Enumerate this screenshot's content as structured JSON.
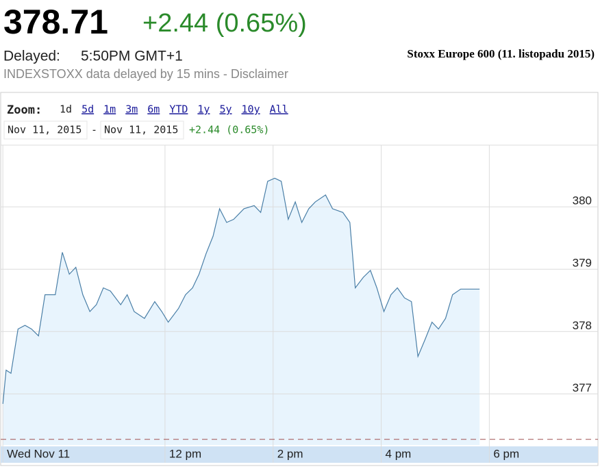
{
  "header": {
    "price": "378.71",
    "change": "+2.44 (0.65%)",
    "delayed_label": "Delayed:",
    "time": "5:50PM GMT+1",
    "chart_title": "Stoxx Europe 600 (11. listopadu 2015)",
    "disclaimer": "INDEXSTOXX data delayed by 15 mins - Disclaimer"
  },
  "controls": {
    "zoom_label": "Zoom:",
    "zoom_options": [
      "1d",
      "5d",
      "1m",
      "3m",
      "6m",
      "YTD",
      "1y",
      "5y",
      "10y",
      "All"
    ],
    "from": "Nov 11, 2015",
    "separator": "-",
    "to": "Nov 11, 2015",
    "range_change": "+2.44 (0.65%)"
  },
  "chart_data": {
    "type": "line",
    "x": [
      9.0,
      9.06,
      9.15,
      9.28,
      9.41,
      9.53,
      9.66,
      9.78,
      9.97,
      10.1,
      10.23,
      10.35,
      10.48,
      10.61,
      10.73,
      10.86,
      10.99,
      11.18,
      11.3,
      11.43,
      11.62,
      11.81,
      11.94,
      12.06,
      12.25,
      12.38,
      12.51,
      12.63,
      12.76,
      12.89,
      13.01,
      13.14,
      13.27,
      13.46,
      13.65,
      13.77,
      13.9,
      14.03,
      14.15,
      14.28,
      14.41,
      14.53,
      14.66,
      14.78,
      14.97,
      15.1,
      15.29,
      15.42,
      15.52,
      15.67,
      15.8,
      15.92,
      16.05,
      16.18,
      16.3,
      16.43,
      16.56,
      16.68,
      16.81,
      16.94,
      17.06,
      17.19,
      17.32,
      17.47,
      17.82
    ],
    "series": [
      {
        "color": "#4a7fa7",
        "fill": "#e8f4fd",
        "values": [
          376.84,
          377.38,
          377.33,
          378.04,
          378.1,
          378.04,
          377.93,
          378.59,
          378.59,
          379.27,
          378.92,
          379.03,
          378.59,
          378.32,
          378.43,
          378.7,
          378.65,
          378.43,
          378.59,
          378.32,
          378.21,
          378.48,
          378.32,
          378.15,
          378.37,
          378.59,
          378.7,
          378.92,
          379.25,
          379.53,
          379.97,
          379.75,
          379.8,
          379.97,
          380.02,
          379.91,
          380.41,
          380.46,
          380.41,
          379.8,
          380.08,
          379.75,
          379.97,
          380.08,
          380.19,
          379.97,
          379.91,
          379.75,
          378.7,
          378.87,
          378.98,
          378.7,
          378.32,
          378.59,
          378.7,
          378.54,
          378.48,
          377.6,
          377.87,
          378.15,
          378.04,
          378.21,
          378.59,
          378.68,
          378.68
        ]
      }
    ],
    "previous_close": 376.27,
    "xlim": [
      8.96,
      20.01
    ],
    "ylim": [
      376.18,
      380.99
    ],
    "xticks": [
      {
        "value": 9,
        "label": "Wed Nov 11"
      },
      {
        "value": 12,
        "label": "12 pm"
      },
      {
        "value": 14,
        "label": "2 pm"
      },
      {
        "value": 16,
        "label": "4 pm"
      },
      {
        "value": 18,
        "label": "6 pm"
      }
    ],
    "yticks": [
      377,
      378,
      379,
      380
    ],
    "grid": true
  }
}
